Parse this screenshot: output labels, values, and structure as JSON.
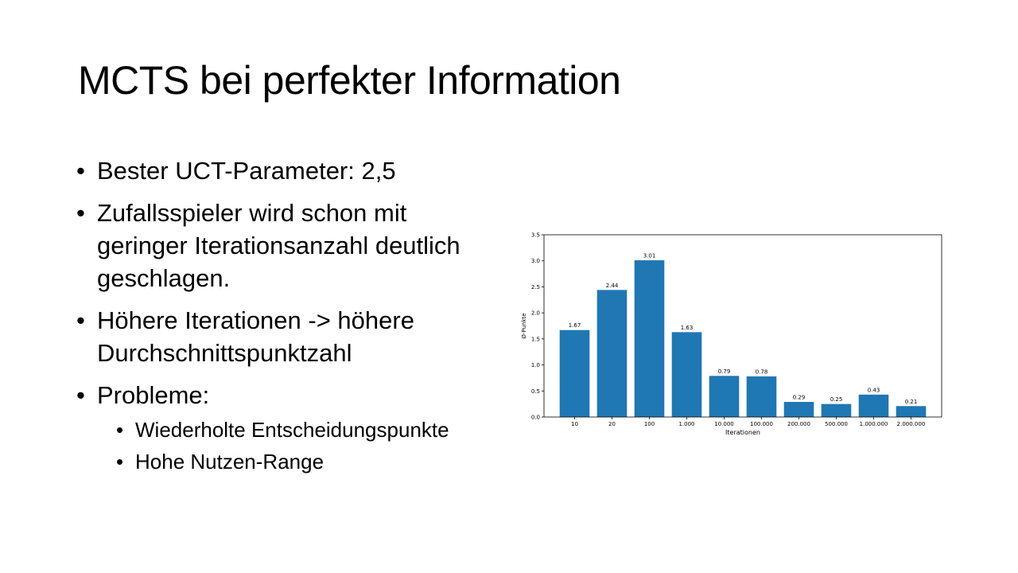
{
  "slide": {
    "title": "MCTS bei perfekter Information",
    "bullets": [
      "Bester UCT-Parameter: 2,5",
      "Zufallsspieler wird schon mit geringer Iterationsanzahl deutlich geschlagen.",
      "Höhere Iterationen -> höhere Durchschnittspunktzahl",
      "Probleme:"
    ],
    "sub_bullets": [
      "Wiederholte Entscheidungspunkte",
      "Hohe Nutzen-Range"
    ]
  },
  "chart_data": {
    "type": "bar",
    "categories": [
      "10",
      "20",
      "100",
      "1.000",
      "10.000",
      "100.000",
      "200.000",
      "500.000",
      "1.000.000",
      "2.000.000"
    ],
    "values": [
      1.67,
      2.44,
      3.01,
      1.63,
      0.79,
      0.78,
      0.29,
      0.25,
      0.43,
      0.21
    ],
    "value_labels": [
      "1.67",
      "2.44",
      "3.01",
      "1.63",
      "0.79",
      "0.78",
      "0.29",
      "0.25",
      "0.43",
      "0.21"
    ],
    "xlabel": "Iterationen",
    "ylabel": "Ø-Punkte",
    "ylim": [
      0,
      3.5
    ],
    "yticks": [
      "0.0",
      "0.5",
      "1.0",
      "1.5",
      "2.0",
      "2.5",
      "3.0",
      "3.5"
    ],
    "bar_color": "#1f77b4",
    "grid": false
  }
}
